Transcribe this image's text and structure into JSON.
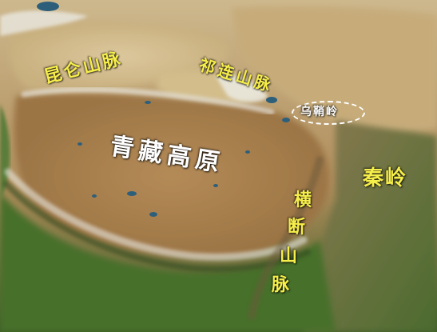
{
  "labels": {
    "kunlun": "昆仑山脉",
    "qilian": "祁连山脉",
    "wushaoling": "乌鞘岭",
    "plateau": "青藏高原",
    "qinling": "秦岭",
    "hengduan": [
      "横",
      "断",
      "山",
      "脉"
    ]
  },
  "colors": {
    "label_yellow": "#f6ee4a",
    "label_white": "#ffffff",
    "plateau_tan": "#b89a6a",
    "desert_sand": "#d2bd8e",
    "forest_green": "#4f7a31",
    "snow": "#eef0ee",
    "lake_blue": "#2e5f7a"
  }
}
